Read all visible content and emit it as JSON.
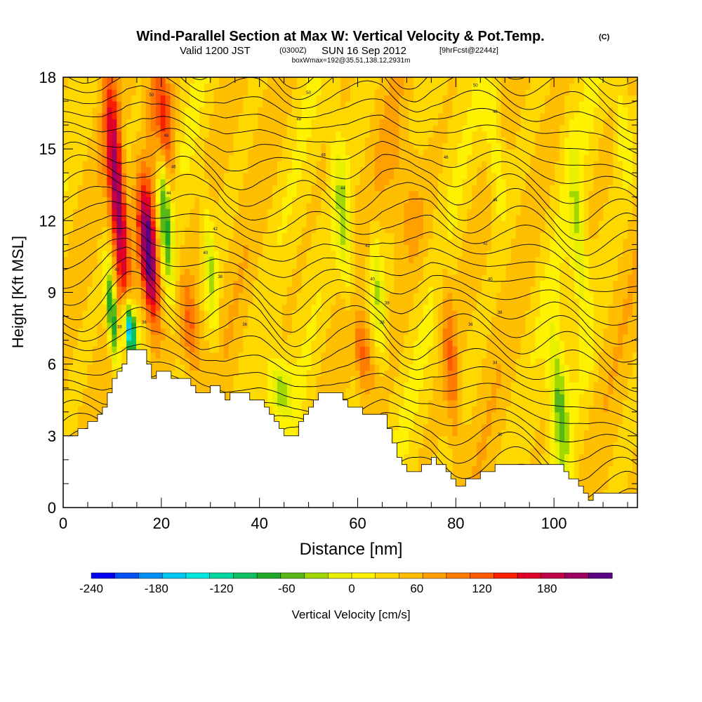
{
  "header": {
    "title": "Wind-Parallel Section at Max W: Vertical Velocity & Pot.Temp.",
    "copyright": "(C)",
    "valid_prefix": "Valid 1200 JST",
    "valid_utc": "(0300Z)",
    "valid_date": "SUN 16 Sep 2012",
    "forecast": "[9hrFcst@2244z]",
    "box_info": "boxWmax=192@35.51,138.12,2931m"
  },
  "chart_data": {
    "type": "heatmap",
    "xlabel": "Distance [nm]",
    "ylabel": "Height [Kft MSL]",
    "xlim": [
      0,
      117
    ],
    "ylim": [
      0,
      18
    ],
    "x_ticks": [
      "0",
      "20",
      "40",
      "60",
      "80",
      "100"
    ],
    "x_tick_values": [
      0,
      20,
      40,
      60,
      80,
      100
    ],
    "y_ticks": [
      "0",
      "3",
      "6",
      "9",
      "12",
      "15",
      "18"
    ],
    "y_tick_values": [
      0,
      3,
      6,
      9,
      12,
      15,
      18
    ],
    "grid": false,
    "colorbar": {
      "label": "Vertical Velocity [cm/s]",
      "min": -240,
      "max": 240,
      "step": 20,
      "tick_labels": [
        "-240",
        "-180",
        "-120",
        "-60",
        "0",
        "60",
        "120",
        "180"
      ],
      "tick_values": [
        -240,
        -180,
        -120,
        -60,
        0,
        60,
        120,
        180
      ],
      "colors": [
        "#0000f0",
        "#0050f5",
        "#0090f5",
        "#00c8f5",
        "#00e8e0",
        "#00d8a0",
        "#10c060",
        "#20a828",
        "#58b818",
        "#a0d800",
        "#e8f000",
        "#fff200",
        "#ffd800",
        "#ffbe00",
        "#ffa000",
        "#ff7c00",
        "#ff5800",
        "#f82000",
        "#e00028",
        "#c00048",
        "#9a0060",
        "#5a0080"
      ]
    },
    "terrain": [
      [
        0,
        3.0
      ],
      [
        4,
        3.2
      ],
      [
        6,
        3.7
      ],
      [
        8,
        4.3
      ],
      [
        9.5,
        5.2
      ],
      [
        12,
        5.9
      ],
      [
        13,
        6.5
      ],
      [
        16,
        6.5
      ],
      [
        18,
        5.5
      ],
      [
        20,
        5.6
      ],
      [
        24,
        5.4
      ],
      [
        26,
        5.1
      ],
      [
        28,
        4.7
      ],
      [
        31,
        5.1
      ],
      [
        33,
        4.6
      ],
      [
        35,
        4.8
      ],
      [
        40,
        4.5
      ],
      [
        42,
        3.8
      ],
      [
        45,
        3.0
      ],
      [
        47,
        3.1
      ],
      [
        50,
        4.2
      ],
      [
        53,
        4.9
      ],
      [
        56,
        4.7
      ],
      [
        58,
        4.1
      ],
      [
        62,
        4.0
      ],
      [
        65,
        3.8
      ],
      [
        67,
        2.6
      ],
      [
        69,
        1.7
      ],
      [
        72,
        1.4
      ],
      [
        75,
        2.2
      ],
      [
        78,
        1.4
      ],
      [
        80,
        1.0
      ],
      [
        83,
        1.1
      ],
      [
        86,
        1.5
      ],
      [
        89,
        1.9
      ],
      [
        95,
        1.9
      ],
      [
        100,
        1.9
      ],
      [
        102,
        1.5
      ],
      [
        105,
        0.9
      ],
      [
        107,
        0.4
      ],
      [
        110,
        0.6
      ],
      [
        115,
        0.6
      ],
      [
        117,
        0.3
      ]
    ],
    "features": [
      {
        "x": 11,
        "z": 13,
        "dx": 1.6,
        "dz": 4.5,
        "w": 160
      },
      {
        "x": 17.5,
        "z": 10.5,
        "dx": 1.8,
        "dz": 3.0,
        "w": 200
      },
      {
        "x": 20,
        "z": 16,
        "dx": 2.2,
        "dz": 3.0,
        "w": 120
      },
      {
        "x": 13.5,
        "z": 7.5,
        "dx": 1.2,
        "dz": 1.2,
        "w": -220
      },
      {
        "x": 10,
        "z": 8,
        "dx": 1.0,
        "dz": 2.0,
        "w": -140
      },
      {
        "x": 20.5,
        "z": 13,
        "dx": 1.3,
        "dz": 3.5,
        "w": -120
      },
      {
        "x": 26,
        "z": 7.5,
        "dx": 2.0,
        "dz": 2.0,
        "w": 70
      },
      {
        "x": 30,
        "z": 10,
        "dx": 1.2,
        "dz": 3.0,
        "w": -60
      },
      {
        "x": 44,
        "z": 5.0,
        "dx": 2.5,
        "dz": 1.2,
        "w": -70
      },
      {
        "x": 57,
        "z": 12,
        "dx": 1.5,
        "dz": 4.0,
        "w": -60
      },
      {
        "x": 61,
        "z": 6.5,
        "dx": 1.8,
        "dz": 1.5,
        "w": 70
      },
      {
        "x": 64,
        "z": 9,
        "dx": 1.5,
        "dz": 3.0,
        "w": -55
      },
      {
        "x": 79,
        "z": 6,
        "dx": 1.5,
        "dz": 4.0,
        "w": 55
      },
      {
        "x": 88,
        "z": 15,
        "dx": 2.0,
        "dz": 3.0,
        "w": -45
      },
      {
        "x": 101,
        "z": 4.5,
        "dx": 1.8,
        "dz": 3.0,
        "w": -85
      },
      {
        "x": 105,
        "z": 11,
        "dx": 1.6,
        "dz": 4.0,
        "w": -55
      },
      {
        "x": 114,
        "z": 16,
        "dx": 1.5,
        "dz": 2.5,
        "w": -40
      },
      {
        "x": 70,
        "z": 13,
        "dx": 4.0,
        "dz": 3.0,
        "w": 30
      }
    ],
    "contour_labels": [
      {
        "x": 50,
        "z": 17.3,
        "text": "50"
      },
      {
        "x": 84,
        "z": 17.6,
        "text": "50"
      },
      {
        "x": 48,
        "z": 16.2,
        "text": "48"
      },
      {
        "x": 88,
        "z": 16.5,
        "text": "48"
      },
      {
        "x": 53,
        "z": 14.7,
        "text": "46"
      },
      {
        "x": 78,
        "z": 14.6,
        "text": "46"
      },
      {
        "x": 57,
        "z": 13.3,
        "text": "44"
      },
      {
        "x": 88,
        "z": 12.8,
        "text": "44"
      },
      {
        "x": 62,
        "z": 10.9,
        "text": "42"
      },
      {
        "x": 86,
        "z": 11.0,
        "text": "42"
      },
      {
        "x": 63,
        "z": 9.5,
        "text": "40"
      },
      {
        "x": 87,
        "z": 9.5,
        "text": "40"
      },
      {
        "x": 66,
        "z": 8.5,
        "text": "38"
      },
      {
        "x": 89,
        "z": 8.1,
        "text": "38"
      },
      {
        "x": 65,
        "z": 7.7,
        "text": "36"
      },
      {
        "x": 83,
        "z": 7.6,
        "text": "36"
      },
      {
        "x": 88,
        "z": 6.0,
        "text": "34"
      },
      {
        "x": 89,
        "z": 3.0,
        "text": "30"
      },
      {
        "x": 18,
        "z": 17.2,
        "text": "50"
      },
      {
        "x": 21,
        "z": 15.5,
        "text": "48"
      },
      {
        "x": 22.5,
        "z": 14.2,
        "text": "46"
      },
      {
        "x": 21.5,
        "z": 13.1,
        "text": "44"
      },
      {
        "x": 31,
        "z": 11.6,
        "text": "42"
      },
      {
        "x": 29,
        "z": 10.6,
        "text": "40"
      },
      {
        "x": 32,
        "z": 9.6,
        "text": "38"
      },
      {
        "x": 37,
        "z": 7.6,
        "text": "36"
      },
      {
        "x": 11,
        "z": 9.9,
        "text": "42"
      },
      {
        "x": 11.5,
        "z": 7.5,
        "text": "38"
      },
      {
        "x": 16.5,
        "z": 7.7,
        "text": "36"
      }
    ]
  }
}
